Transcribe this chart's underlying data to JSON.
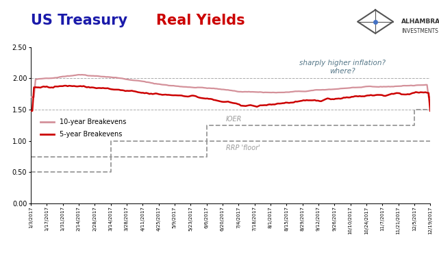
{
  "title_part1": "US Treasury ",
  "title_part2": "Real Yields",
  "title_color1": "#1a1aaa",
  "title_color2": "#CC0000",
  "title_fontsize": 15,
  "background_color": "#FFFFFF",
  "ylim": [
    0.0,
    2.5
  ],
  "yticks": [
    0.0,
    0.5,
    1.0,
    1.5,
    2.0,
    2.5
  ],
  "grid_color": "#AAAAAA",
  "line_10yr_color": "#D4919A",
  "line_5yr_color": "#CC0000",
  "legend_10yr": "10-year Breakevens",
  "legend_5yr": "5-year Breakevens",
  "annotation_text": "sharply higher inflation?\nwhere?",
  "annotation_color": "#557788",
  "label_IOER": "IOER",
  "label_RRP": "RRP 'floor'",
  "label_color": "#999999",
  "dashed_color": "#999999",
  "xtick_labels": [
    "1/3/2017",
    "1/17/2017",
    "1/31/2017",
    "2/14/2017",
    "2/28/2017",
    "3/14/2017",
    "3/28/2017",
    "4/11/2017",
    "4/25/2017",
    "5/9/2017",
    "5/23/2017",
    "6/6/2017",
    "6/20/2017",
    "7/4/2017",
    "7/18/2017",
    "8/1/2017",
    "8/15/2017",
    "8/29/2017",
    "9/12/2017",
    "9/26/2017",
    "10/10/2017",
    "10/24/2017",
    "11/7/2017",
    "11/21/2017",
    "12/5/2017",
    "12/19/2017"
  ],
  "n_points": 250,
  "seed": 42
}
